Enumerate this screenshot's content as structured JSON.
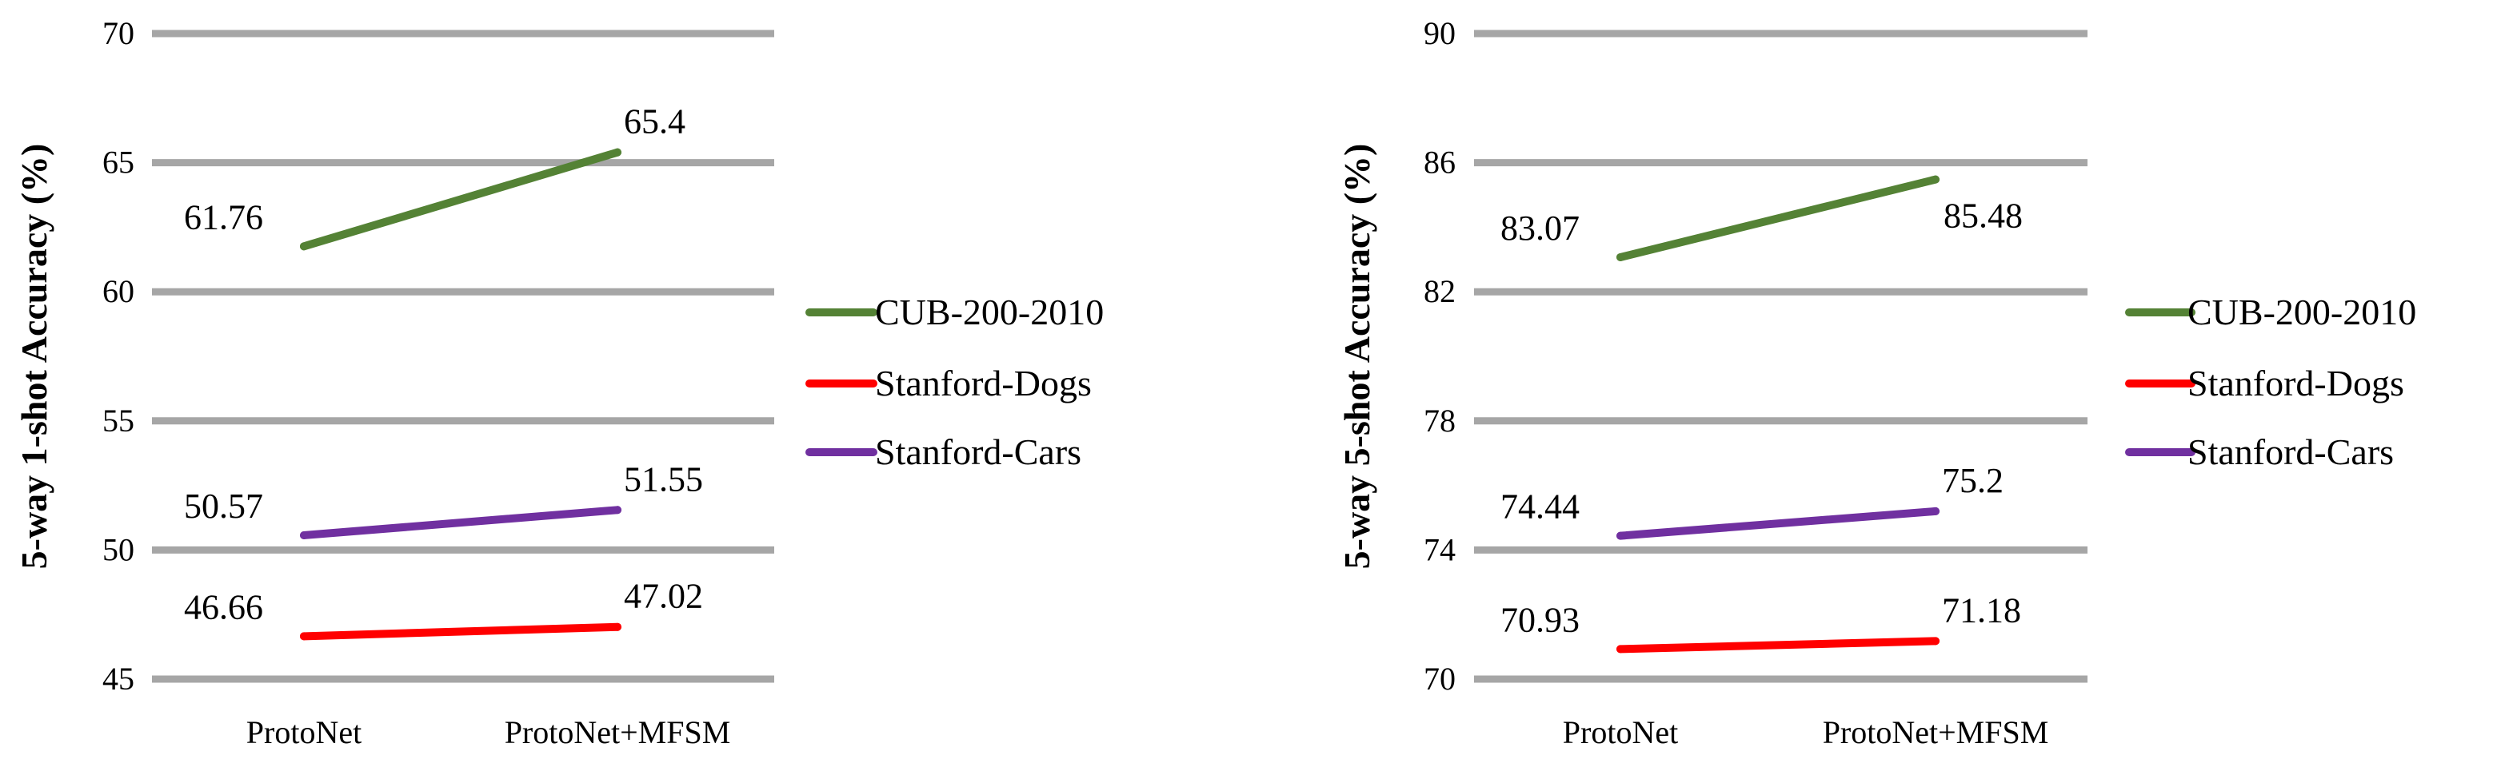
{
  "chart_data": [
    {
      "type": "line",
      "title": "",
      "xlabel": "",
      "ylabel": "5-way 1-shot Accuracy (%)",
      "categories": [
        "ProtoNet",
        "ProtoNet+MFSM"
      ],
      "ylim": [
        45,
        70
      ],
      "yticks": [
        "45",
        "50",
        "55",
        "60",
        "65",
        "70"
      ],
      "grid": true,
      "legend_position": "right",
      "series": [
        {
          "name": "CUB-200-2010",
          "color": "#548235",
          "values": [
            61.76,
            65.4
          ],
          "labels": [
            "61.76",
            "65.4"
          ]
        },
        {
          "name": "Stanford-Dogs",
          "color": "#ff0000",
          "values": [
            46.66,
            47.02
          ],
          "labels": [
            "46.66",
            "47.02"
          ]
        },
        {
          "name": "Stanford-Cars",
          "color": "#7030a0",
          "values": [
            50.57,
            51.55
          ],
          "labels": [
            "50.57",
            "51.55"
          ]
        }
      ]
    },
    {
      "type": "line",
      "title": "",
      "xlabel": "",
      "ylabel": "5-way 5-shot Accuracy (%)",
      "categories": [
        "ProtoNet",
        "ProtoNet+MFSM"
      ],
      "ylim": [
        70,
        90
      ],
      "yticks": [
        "70",
        "74",
        "78",
        "82",
        "86",
        "90"
      ],
      "grid": true,
      "legend_position": "right",
      "series": [
        {
          "name": "CUB-200-2010",
          "color": "#548235",
          "values": [
            83.07,
            85.48
          ],
          "labels": [
            "83.07",
            "85.48"
          ]
        },
        {
          "name": "Stanford-Dogs",
          "color": "#ff0000",
          "values": [
            70.93,
            71.18
          ],
          "labels": [
            "70.93",
            "71.18"
          ]
        },
        {
          "name": "Stanford-Cars",
          "color": "#7030a0",
          "values": [
            74.44,
            75.2
          ],
          "labels": [
            "74.44",
            "75.2"
          ]
        }
      ]
    }
  ]
}
